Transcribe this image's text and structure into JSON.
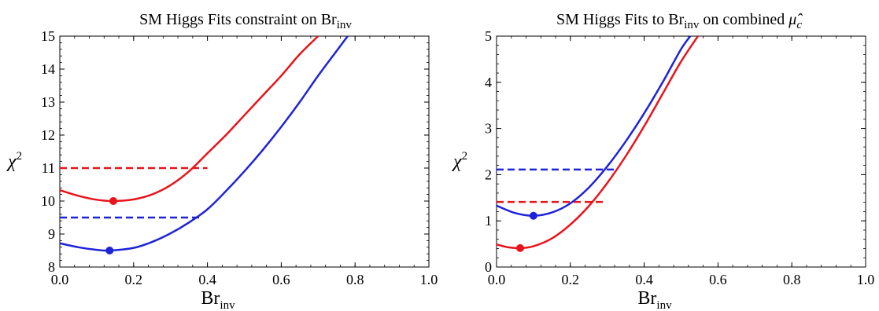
{
  "chart_data": [
    {
      "type": "line",
      "title": "SM Higgs Fits constraint on Br",
      "title_sub": "inv",
      "xlabel": "Br",
      "xlabel_sub": "inv",
      "ylabel": "χ",
      "ylabel_sup": "2",
      "xlim": [
        0,
        1
      ],
      "ylim": [
        8,
        15
      ],
      "xticks": [
        "0.0",
        "0.2",
        "0.4",
        "0.6",
        "0.8",
        "1.0"
      ],
      "yticks": [
        "8",
        "9",
        "10",
        "11",
        "12",
        "13",
        "14",
        "15"
      ],
      "grid": false,
      "legend": "none",
      "series": [
        {
          "color": "#e8141b",
          "x": [
            0,
            0.05,
            0.1,
            0.145,
            0.2,
            0.25,
            0.3,
            0.35,
            0.4,
            0.45,
            0.5,
            0.55,
            0.6,
            0.65,
            0.7,
            0.72
          ],
          "y": [
            10.33,
            10.16,
            10.04,
            10.0,
            10.05,
            10.2,
            10.48,
            10.9,
            11.45,
            12.0,
            12.6,
            13.2,
            13.8,
            14.45,
            15.0,
            15.2
          ],
          "minimum": {
            "x": 0.145,
            "y": 10.0
          },
          "threshold": {
            "y": 11.0,
            "x_end": 0.4
          }
        },
        {
          "color": "#1e23d8",
          "x": [
            0,
            0.05,
            0.1,
            0.135,
            0.2,
            0.25,
            0.3,
            0.35,
            0.4,
            0.45,
            0.5,
            0.55,
            0.6,
            0.65,
            0.7,
            0.75,
            0.78
          ],
          "y": [
            8.72,
            8.6,
            8.52,
            8.5,
            8.58,
            8.76,
            9.02,
            9.35,
            9.75,
            10.3,
            10.9,
            11.55,
            12.25,
            13.0,
            13.8,
            14.55,
            15.0
          ],
          "minimum": {
            "x": 0.135,
            "y": 8.5
          },
          "threshold": {
            "y": 9.5,
            "x_end": 0.38
          }
        }
      ]
    },
    {
      "type": "line",
      "title": "SM Higgs Fits to Br",
      "title_sub": "inv",
      "title_rest": " on combined ",
      "title_mu": "μ̂",
      "title_mu_sub": "c",
      "xlabel": "Br",
      "xlabel_sub": "inv",
      "ylabel": "χ",
      "ylabel_sup": "2",
      "xlim": [
        0,
        1
      ],
      "ylim": [
        0,
        5
      ],
      "xticks": [
        "0.0",
        "0.2",
        "0.4",
        "0.6",
        "0.8",
        "1.0"
      ],
      "yticks": [
        "0",
        "1",
        "2",
        "3",
        "4",
        "5"
      ],
      "grid": false,
      "legend": "none",
      "series": [
        {
          "color": "#e8141b",
          "x": [
            0,
            0.03,
            0.064,
            0.1,
            0.15,
            0.2,
            0.25,
            0.3,
            0.35,
            0.4,
            0.45,
            0.5,
            0.55
          ],
          "y": [
            0.49,
            0.43,
            0.41,
            0.45,
            0.62,
            0.92,
            1.32,
            1.82,
            2.4,
            3.05,
            3.75,
            4.45,
            5.05
          ],
          "minimum": {
            "x": 0.064,
            "y": 0.41
          },
          "threshold": {
            "y": 1.41,
            "x_end": 0.29
          }
        },
        {
          "color": "#1e23d8",
          "x": [
            0,
            0.05,
            0.1,
            0.15,
            0.2,
            0.25,
            0.3,
            0.35,
            0.4,
            0.45,
            0.5,
            0.53
          ],
          "y": [
            1.33,
            1.17,
            1.11,
            1.18,
            1.38,
            1.72,
            2.18,
            2.72,
            3.33,
            4.0,
            4.72,
            5.05
          ],
          "minimum": {
            "x": 0.1,
            "y": 1.11
          },
          "threshold": {
            "y": 2.11,
            "x_end": 0.32
          }
        }
      ]
    }
  ]
}
